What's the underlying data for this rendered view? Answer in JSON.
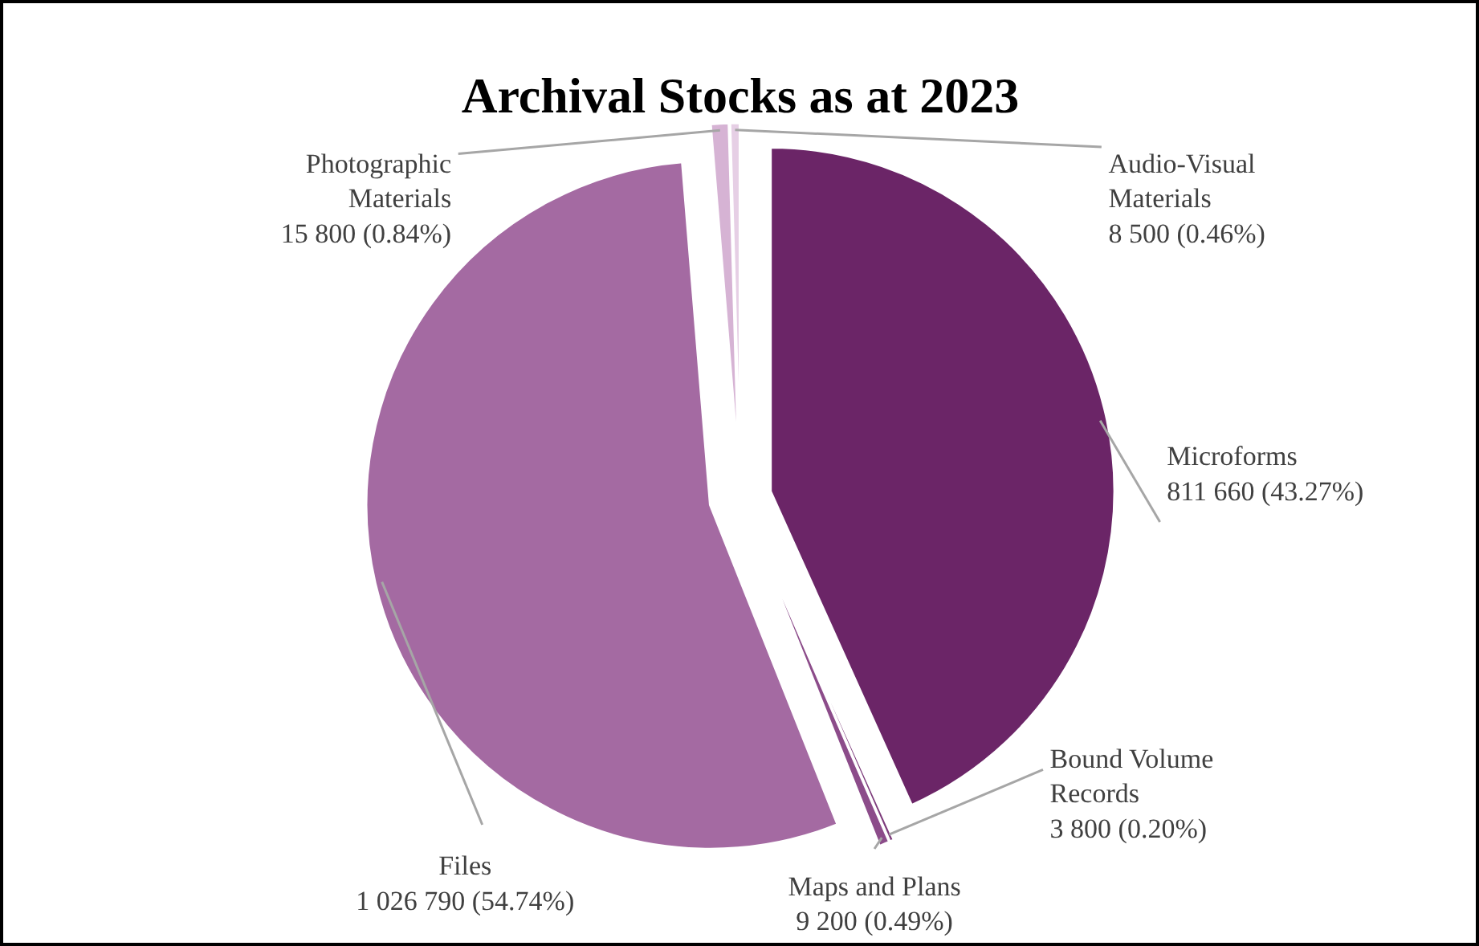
{
  "chart_data": {
    "type": "pie",
    "title": "Archival Stocks as at 2023",
    "categories": [
      "Microforms",
      "Bound Volume Records",
      "Maps and Plans",
      "Files",
      "Photographic Materials",
      "Audio-Visual Materials"
    ],
    "values": [
      811660,
      3800,
      9200,
      1026790,
      15800,
      8500
    ],
    "colors": [
      "#6b2567",
      "#7d3b7b",
      "#8c4c8a",
      "#a46aa2",
      "#d6b3d4",
      "#e6cfe5"
    ],
    "value_labels": [
      "811 660 (43.27%)",
      "3 800 (0.20%)",
      "9 200 (0.49%)",
      "1 026 790 (54.74%)",
      "15 800 (0.84%)",
      "8 500 (0.46%)"
    ]
  }
}
